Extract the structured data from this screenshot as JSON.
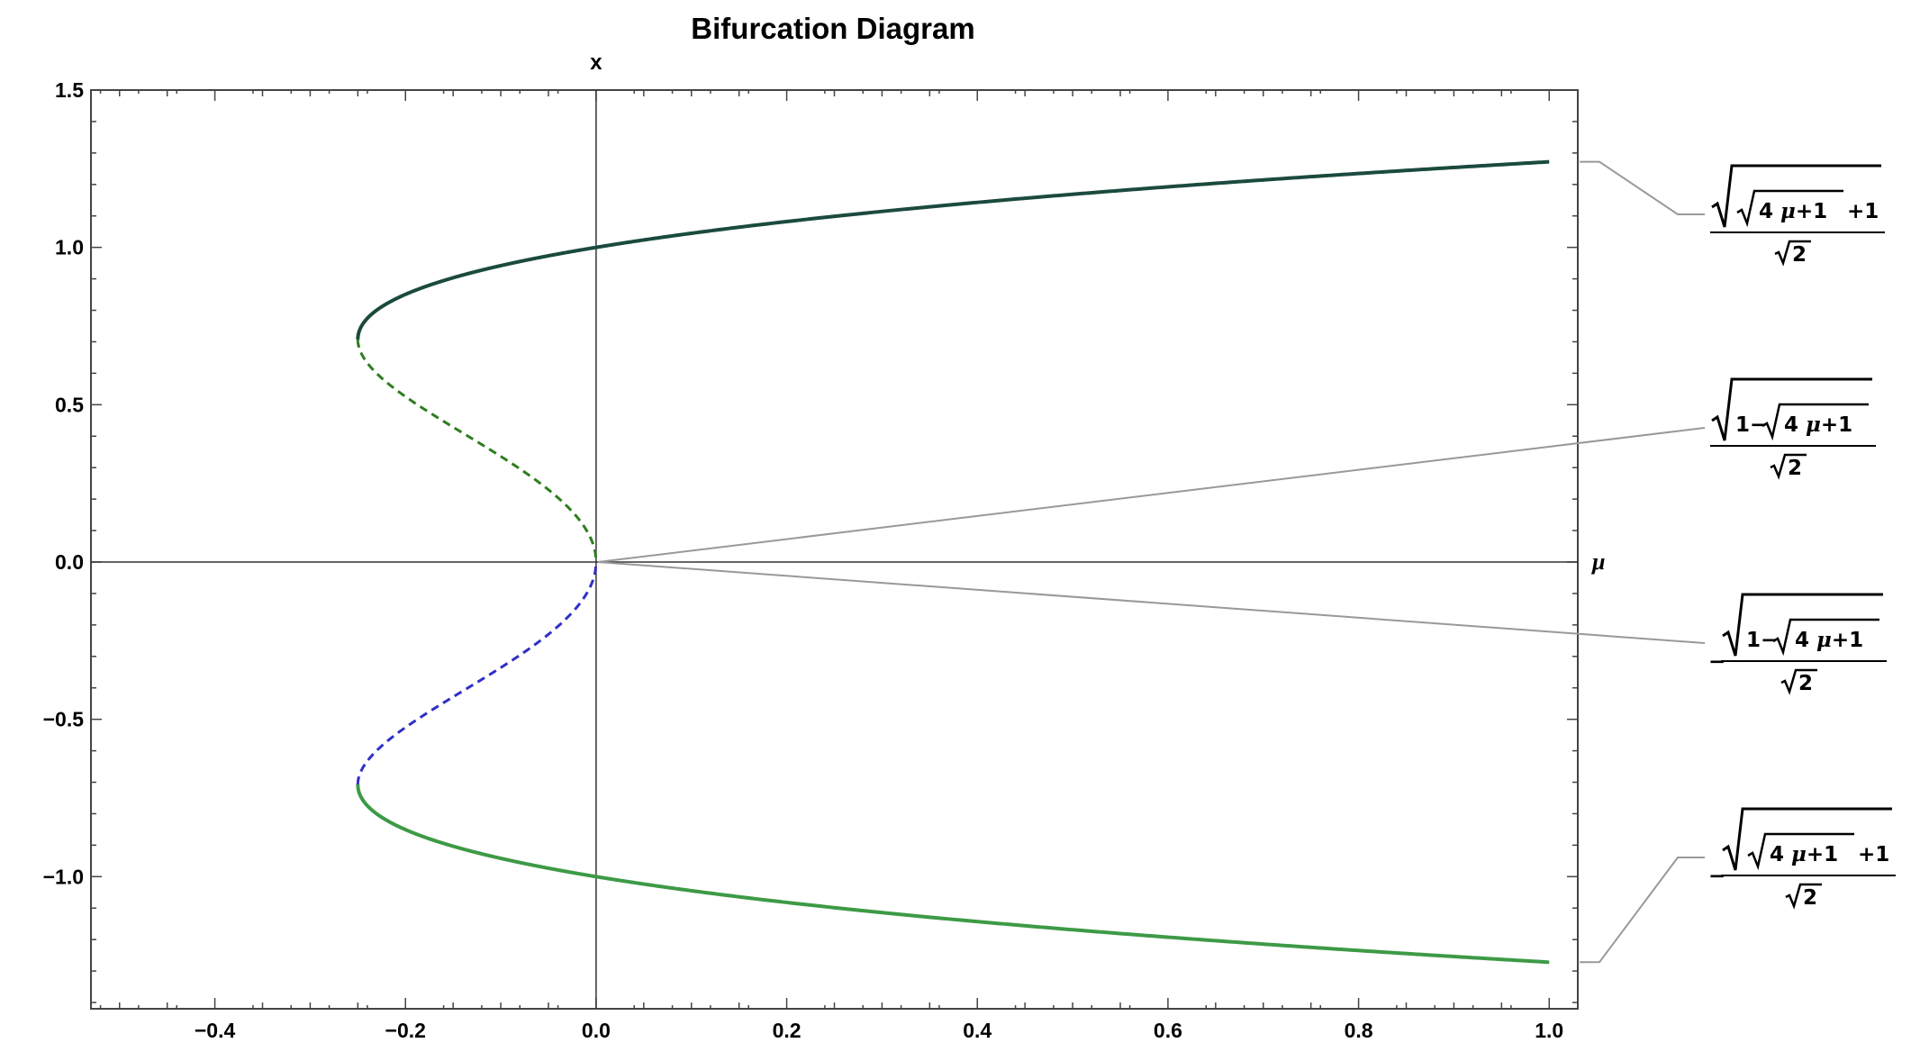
{
  "chart_data": {
    "type": "line",
    "title": "Bifurcation Diagram",
    "xlabel": "μ",
    "ylabel": "x",
    "xlim": [
      -0.53,
      1.03
    ],
    "ylim": [
      -1.42,
      1.5
    ],
    "x_ticks": [
      -0.4,
      -0.2,
      0.0,
      0.2,
      0.4,
      0.6,
      0.8,
      1.0
    ],
    "x_tick_labels": [
      "−0.4",
      "−0.2",
      "0.0",
      "0.2",
      "0.4",
      "0.6",
      "0.8",
      "1.0"
    ],
    "y_ticks": [
      1.5,
      1.0,
      0.5,
      0.0,
      -0.5,
      -1.0
    ],
    "y_tick_labels": [
      "1.5",
      "1.0",
      "0.5",
      "0.0",
      "−0.5",
      "−1.0"
    ],
    "grid": false,
    "legend": "callout labels on the right",
    "series": [
      {
        "label": {
          "sign": "",
          "outer_left": "",
          "inner": "4μ+1",
          "outer_right": "+1",
          "denominator": "2"
        },
        "x_range": [
          -0.25,
          1.0
        ],
        "x": [
          -0.25,
          -0.24,
          -0.2,
          -0.1,
          0.0,
          0.2,
          0.4,
          0.6,
          0.8,
          1.0
        ],
        "y": [
          0.707,
          0.78,
          0.851,
          0.939,
          1.0,
          1.087,
          1.14,
          1.191,
          1.234,
          1.272
        ],
        "style": "solid",
        "color": "#1b4a3e"
      },
      {
        "label": {
          "sign": "",
          "outer_left": "1−",
          "inner": "4μ+1",
          "outer_right": "",
          "denominator": "2"
        },
        "x_range": [
          -0.25,
          0.0
        ],
        "x": [
          -0.25,
          -0.24,
          -0.2,
          -0.15,
          -0.1,
          -0.05,
          0.0
        ],
        "y": [
          0.707,
          0.63,
          0.526,
          0.425,
          0.336,
          0.238,
          0.0
        ],
        "style": "dashed",
        "color": "#2e7d1e"
      },
      {
        "label": {
          "sign": "−",
          "outer_left": "1−",
          "inner": "4μ+1",
          "outer_right": "",
          "denominator": "2"
        },
        "x_range": [
          -0.25,
          0.0
        ],
        "x": [
          -0.25,
          -0.24,
          -0.2,
          -0.15,
          -0.1,
          -0.05,
          0.0
        ],
        "y": [
          -0.707,
          -0.63,
          -0.526,
          -0.425,
          -0.336,
          -0.238,
          0.0
        ],
        "style": "dashed",
        "color": "#2f2fc8"
      },
      {
        "label": {
          "sign": "−",
          "outer_left": "",
          "inner": "4μ+1",
          "outer_right": "+1",
          "denominator": "2"
        },
        "x_range": [
          -0.25,
          1.0
        ],
        "x": [
          -0.25,
          -0.24,
          -0.2,
          -0.1,
          0.0,
          0.2,
          0.4,
          0.6,
          0.8,
          1.0
        ],
        "y": [
          -0.707,
          -0.78,
          -0.851,
          -0.939,
          -1.0,
          -1.087,
          -1.14,
          -1.191,
          -1.234,
          -1.272
        ],
        "style": "solid",
        "color": "#3d9a46"
      }
    ],
    "callout_line_color": "#999999",
    "axis_color": "#444444"
  }
}
